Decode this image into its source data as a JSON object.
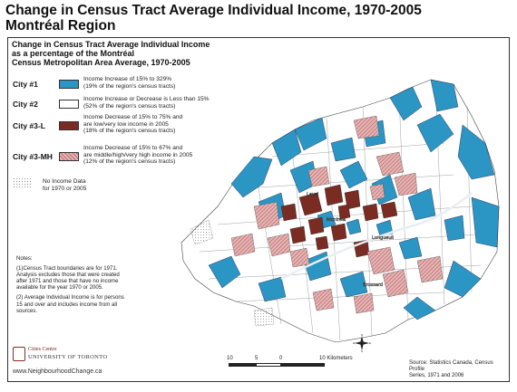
{
  "title": {
    "line1": "Change in Census Tract Average Individual Income, 1970-2005",
    "line2": "Montréal Region"
  },
  "subtitle": {
    "line1": "Change in Census Tract Average Individual Income",
    "line2": "as a percentage of the Montréal",
    "line3": "Census Metropolitan Area Average, 1970-2005"
  },
  "legend": [
    {
      "label": "City #1",
      "color": "#2b95c4",
      "line1": "Income Increase of 15% to 329%",
      "line2": "(19% of the region's census tracts)",
      "line3": ""
    },
    {
      "label": "City #2",
      "color": "#ffffff",
      "line1": "Income Increase or Decrease is Less than 15%",
      "line2": "(52% of the region's census tracts)",
      "line3": ""
    },
    {
      "label": "City #3-L",
      "color": "#7a2b22",
      "line1": "Income Decrease of 15% to 75% and",
      "line2": "are low/very low income in 2005",
      "line3": "(18% of the region's census tracts)"
    },
    {
      "label": "City #3-MH",
      "color": "#d49a9a",
      "line1": "Income Decrease of 15% to 67% and",
      "line2": "are middle/high/very high income in 2005",
      "line3": "(12% of the region's census tracts)"
    }
  ],
  "nodata": {
    "line1": "No Income Data",
    "line2": "for 1970 or 2005"
  },
  "notes": {
    "heading": "Notes:",
    "note1": "(1)Census Tract boundaries are for 1971. Analysis excludes those that were created after 1971 and those that have no income available for the year 1970 or 2005.",
    "note2": "(2) Average Individual Income is for persons 15 and over and includes income from all sources."
  },
  "logo": {
    "line1": "Cities Centre",
    "line2": "UNIVERSITY OF TORONTO"
  },
  "website": "www.NeighbourhoodChange.ca",
  "source": {
    "line1": "Source: Statistics Canada, Census Profile",
    "line2": "Series, 1971 and 2006"
  },
  "scale": {
    "t10": "10",
    "t5": "5",
    "t0": "0",
    "t10b": "10 Kilometers"
  },
  "compass": {
    "n": "N",
    "s": "S",
    "e": "E",
    "w": "W"
  },
  "map_labels": {
    "laval": "Laval",
    "montreal": "Montréal",
    "longueuil": "Longueuil",
    "brossard": "Brossard"
  }
}
